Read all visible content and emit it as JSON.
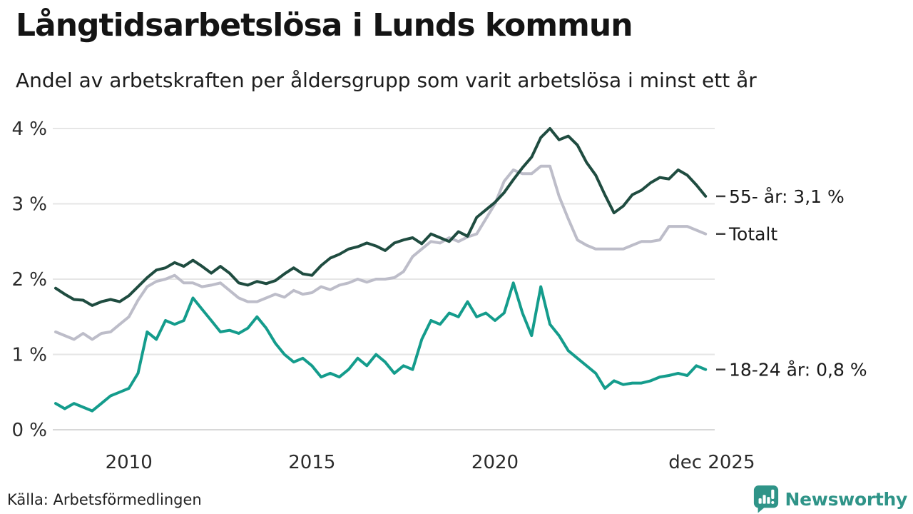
{
  "header": {
    "title": "Långtidsarbetslösa i Lunds kommun",
    "subtitle": "Andel av arbetskraften per åldersgrupp som varit arbetslösa i minst ett år"
  },
  "footer": {
    "source": "Källa: Arbetsförmedlingen",
    "brand": "Newsworthy",
    "brand_icon": "bar-chart-speech-bubble-icon"
  },
  "colors": {
    "series_55": "#1f4c40",
    "series_total": "#bdbdc9",
    "series_1824": "#149c8c",
    "grid": "#e6e6e6",
    "grid_zero": "#d8d8d8",
    "label_tick": "#3c3c3c",
    "brand": "#2f9488"
  },
  "chart_data": {
    "type": "line",
    "title": "Långtidsarbetslösa i Lunds kommun",
    "xlabel": "",
    "ylabel": "",
    "x_start": 2008.0,
    "x_step": 0.25,
    "xlim": [
      2008,
      2026
    ],
    "ylim": [
      0,
      4
    ],
    "grid": true,
    "legend_position": "right-of-line-end",
    "y_ticks": [
      {
        "value": 0,
        "label": "0 %"
      },
      {
        "value": 1,
        "label": "1 %"
      },
      {
        "value": 2,
        "label": "2 %"
      },
      {
        "value": 3,
        "label": "3 %"
      },
      {
        "value": 4,
        "label": "4 %"
      }
    ],
    "x_ticks": [
      {
        "value": 2010,
        "label": "2010"
      },
      {
        "value": 2015,
        "label": "2015"
      },
      {
        "value": 2020,
        "label": "2020"
      },
      {
        "value": 2025.92,
        "label": "dec 2025"
      }
    ],
    "series": [
      {
        "name": "Totalt",
        "label": "Totalt",
        "color_key": "series_total",
        "end_value": 2.6,
        "values": [
          1.3,
          1.25,
          1.2,
          1.28,
          1.2,
          1.28,
          1.3,
          1.4,
          1.5,
          1.72,
          1.9,
          1.97,
          2.0,
          2.05,
          1.95,
          1.95,
          1.9,
          1.92,
          1.95,
          1.85,
          1.75,
          1.7,
          1.7,
          1.75,
          1.8,
          1.76,
          1.85,
          1.8,
          1.82,
          1.9,
          1.86,
          1.92,
          1.95,
          2.0,
          1.96,
          2.0,
          2.0,
          2.02,
          2.1,
          2.3,
          2.4,
          2.5,
          2.48,
          2.55,
          2.5,
          2.56,
          2.6,
          2.8,
          3.0,
          3.3,
          3.45,
          3.4,
          3.4,
          3.5,
          3.5,
          3.1,
          2.8,
          2.52,
          2.45,
          2.4,
          2.4,
          2.4,
          2.4,
          2.45,
          2.5,
          2.5,
          2.52,
          2.7,
          2.7,
          2.7,
          2.65,
          2.6
        ]
      },
      {
        "name": "55- år",
        "label": "55- år: 3,1 %",
        "color_key": "series_55",
        "end_value": 3.1,
        "values": [
          1.88,
          1.8,
          1.73,
          1.72,
          1.65,
          1.7,
          1.73,
          1.7,
          1.78,
          1.9,
          2.02,
          2.12,
          2.15,
          2.22,
          2.17,
          2.25,
          2.17,
          2.08,
          2.17,
          2.08,
          1.95,
          1.92,
          1.97,
          1.94,
          1.98,
          2.07,
          2.15,
          2.07,
          2.05,
          2.18,
          2.28,
          2.33,
          2.4,
          2.43,
          2.48,
          2.44,
          2.38,
          2.48,
          2.52,
          2.55,
          2.47,
          2.6,
          2.55,
          2.5,
          2.63,
          2.57,
          2.82,
          2.92,
          3.02,
          3.15,
          3.32,
          3.48,
          3.62,
          3.88,
          4.0,
          3.85,
          3.9,
          3.78,
          3.55,
          3.38,
          3.12,
          2.88,
          2.97,
          3.12,
          3.18,
          3.28,
          3.35,
          3.33,
          3.45,
          3.38,
          3.25,
          3.1
        ]
      },
      {
        "name": "18-24 år",
        "label": "18-24 år: 0,8 %",
        "color_key": "series_1824",
        "end_value": 0.8,
        "values": [
          0.35,
          0.28,
          0.35,
          0.3,
          0.25,
          0.35,
          0.45,
          0.5,
          0.55,
          0.75,
          1.3,
          1.2,
          1.45,
          1.4,
          1.45,
          1.75,
          1.6,
          1.45,
          1.3,
          1.32,
          1.28,
          1.35,
          1.5,
          1.35,
          1.15,
          1.0,
          0.9,
          0.95,
          0.85,
          0.7,
          0.75,
          0.7,
          0.8,
          0.95,
          0.85,
          1.0,
          0.9,
          0.75,
          0.85,
          0.8,
          1.2,
          1.45,
          1.4,
          1.55,
          1.5,
          1.7,
          1.5,
          1.55,
          1.45,
          1.55,
          1.95,
          1.55,
          1.25,
          1.9,
          1.4,
          1.25,
          1.05,
          0.95,
          0.85,
          0.75,
          0.55,
          0.65,
          0.6,
          0.62,
          0.62,
          0.65,
          0.7,
          0.72,
          0.75,
          0.72,
          0.85,
          0.8
        ]
      }
    ]
  }
}
